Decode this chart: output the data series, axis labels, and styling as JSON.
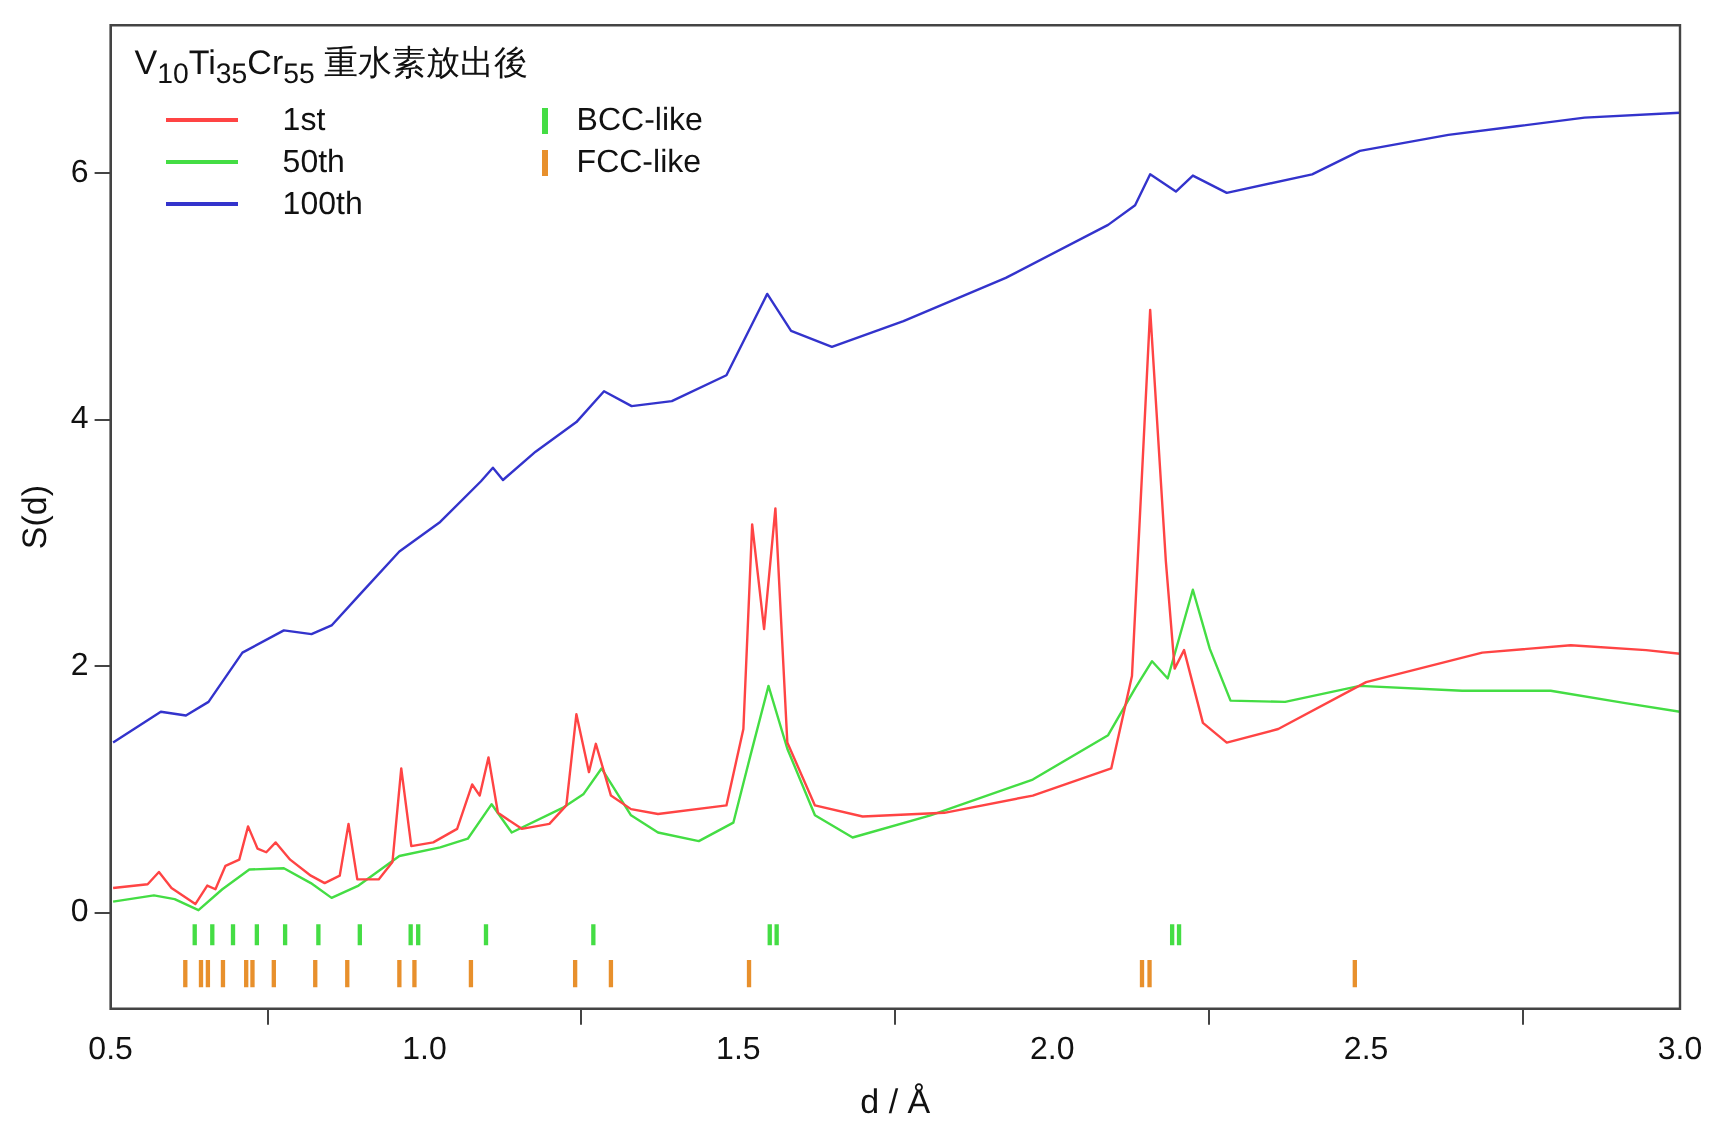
{
  "chart_data": {
    "type": "line",
    "legend_title": "V$_{10}$Ti$_{35}$Cr$_{55}$ 重水素放出後",
    "xlabel": "d / Å",
    "ylabel": "S(d)",
    "xlim": [
      0.5,
      3.0
    ],
    "xticks": [
      {
        "value": 0.5,
        "label": "0.5"
      },
      {
        "value": 1.0,
        "label": "1.0"
      },
      {
        "value": 1.5,
        "label": "1.5"
      },
      {
        "value": 2.0,
        "label": "2.0"
      },
      {
        "value": 2.5,
        "label": "2.5"
      },
      {
        "value": 3.0,
        "label": "3.0"
      }
    ],
    "ylim": [
      -0.78,
      7.2
    ],
    "yticks": [
      0,
      2,
      4,
      6
    ],
    "grid": false,
    "legend": "top left",
    "marker": "none",
    "line_style": "solid",
    "series": [
      {
        "name": "1st",
        "color": "#ff4444",
        "x": [
          0.504,
          0.559,
          0.577,
          0.597,
          0.635,
          0.654,
          0.667,
          0.683,
          0.705,
          0.719,
          0.734,
          0.748,
          0.763,
          0.786,
          0.819,
          0.841,
          0.865,
          0.879,
          0.893,
          0.927,
          0.949,
          0.963,
          0.979,
          1.014,
          1.052,
          1.076,
          1.088,
          1.102,
          1.117,
          1.155,
          1.199,
          1.226,
          1.242,
          1.262,
          1.273,
          1.297,
          1.329,
          1.372,
          1.481,
          1.508,
          1.522,
          1.541,
          1.559,
          1.578,
          1.622,
          1.698,
          1.828,
          1.969,
          2.094,
          2.127,
          2.156,
          2.181,
          2.195,
          2.21,
          2.24,
          2.278,
          2.36,
          2.5,
          2.685,
          2.826,
          2.946,
          3.0
        ],
        "values": [
          0.2,
          0.23,
          0.33,
          0.2,
          0.07,
          0.22,
          0.19,
          0.38,
          0.43,
          0.7,
          0.52,
          0.49,
          0.57,
          0.43,
          0.3,
          0.24,
          0.3,
          0.72,
          0.27,
          0.27,
          0.41,
          1.17,
          0.54,
          0.57,
          0.68,
          1.04,
          0.95,
          1.26,
          0.81,
          0.68,
          0.72,
          0.87,
          1.61,
          1.14,
          1.37,
          0.95,
          0.84,
          0.8,
          0.87,
          1.49,
          3.15,
          2.3,
          3.28,
          1.38,
          0.87,
          0.78,
          0.81,
          0.95,
          1.17,
          1.92,
          4.89,
          2.85,
          1.98,
          2.13,
          1.54,
          1.38,
          1.49,
          1.87,
          2.11,
          2.17,
          2.13,
          2.1
        ]
      },
      {
        "name": "50th",
        "color": "#44dd44",
        "x": [
          0.504,
          0.569,
          0.602,
          0.64,
          0.678,
          0.721,
          0.776,
          0.819,
          0.852,
          0.895,
          0.96,
          1.025,
          1.069,
          1.107,
          1.139,
          1.22,
          1.253,
          1.282,
          1.329,
          1.372,
          1.437,
          1.492,
          1.519,
          1.548,
          1.578,
          1.622,
          1.682,
          1.806,
          1.969,
          2.089,
          2.132,
          2.159,
          2.184,
          2.224,
          2.251,
          2.284,
          2.371,
          2.49,
          2.653,
          2.794,
          2.913,
          3.0
        ],
        "values": [
          0.09,
          0.14,
          0.11,
          0.02,
          0.19,
          0.35,
          0.36,
          0.24,
          0.12,
          0.22,
          0.46,
          0.53,
          0.6,
          0.88,
          0.65,
          0.85,
          0.96,
          1.17,
          0.79,
          0.65,
          0.58,
          0.73,
          1.27,
          1.84,
          1.33,
          0.79,
          0.61,
          0.79,
          1.08,
          1.44,
          1.82,
          2.04,
          1.9,
          2.62,
          2.14,
          1.72,
          1.71,
          1.84,
          1.8,
          1.8,
          1.7,
          1.63
        ]
      },
      {
        "name": "100th",
        "color": "#3333cc",
        "x": [
          0.504,
          0.58,
          0.62,
          0.656,
          0.71,
          0.776,
          0.82,
          0.852,
          0.895,
          0.96,
          1.025,
          1.09,
          1.109,
          1.125,
          1.177,
          1.242,
          1.286,
          1.33,
          1.394,
          1.481,
          1.546,
          1.584,
          1.649,
          1.763,
          1.926,
          2.089,
          2.132,
          2.156,
          2.197,
          2.224,
          2.278,
          2.414,
          2.49,
          2.631,
          2.74,
          2.848,
          3.0
        ],
        "values": [
          1.38,
          1.63,
          1.6,
          1.71,
          2.11,
          2.29,
          2.26,
          2.33,
          2.57,
          2.93,
          3.17,
          3.5,
          3.61,
          3.51,
          3.74,
          3.98,
          4.23,
          4.11,
          4.15,
          4.36,
          5.02,
          4.72,
          4.59,
          4.8,
          5.15,
          5.58,
          5.74,
          5.99,
          5.85,
          5.98,
          5.84,
          5.99,
          6.18,
          6.31,
          6.38,
          6.45,
          6.49
        ]
      },
      {
        "name": "BCC-like",
        "type": "bar",
        "color": "#44dd44",
        "x": [
          0.634,
          0.662,
          0.695,
          0.733,
          0.778,
          0.831,
          0.897,
          0.978,
          0.99,
          1.098,
          1.269,
          1.55,
          1.561,
          2.191,
          2.202
        ],
        "base": [
          -0.26,
          -0.26,
          -0.26,
          -0.26,
          -0.26,
          -0.26,
          -0.26,
          -0.26,
          -0.26,
          -0.26,
          -0.26,
          -0.26,
          -0.26,
          -0.26,
          -0.26
        ],
        "values": [
          0.16,
          0.16,
          0.16,
          0.16,
          0.16,
          0.16,
          0.16,
          0.16,
          0.16,
          0.16,
          0.16,
          0.16,
          0.16,
          0.16,
          0.16
        ]
      },
      {
        "name": "FCC-like",
        "type": "bar",
        "color": "#e8902c",
        "x": [
          0.619,
          0.644,
          0.655,
          0.679,
          0.716,
          0.726,
          0.76,
          0.826,
          0.877,
          0.96,
          0.984,
          1.074,
          1.24,
          1.297,
          1.517,
          2.143,
          2.155,
          2.482
        ],
        "base": [
          -0.6,
          -0.6,
          -0.6,
          -0.6,
          -0.6,
          -0.6,
          -0.6,
          -0.6,
          -0.6,
          -0.6,
          -0.6,
          -0.6,
          -0.6,
          -0.6,
          -0.6,
          -0.6,
          -0.6,
          -0.6
        ],
        "values": [
          0.21,
          0.21,
          0.21,
          0.21,
          0.21,
          0.21,
          0.21,
          0.21,
          0.21,
          0.21,
          0.21,
          0.21,
          0.21,
          0.21,
          0.21,
          0.21,
          0.21,
          0.21
        ]
      }
    ]
  }
}
